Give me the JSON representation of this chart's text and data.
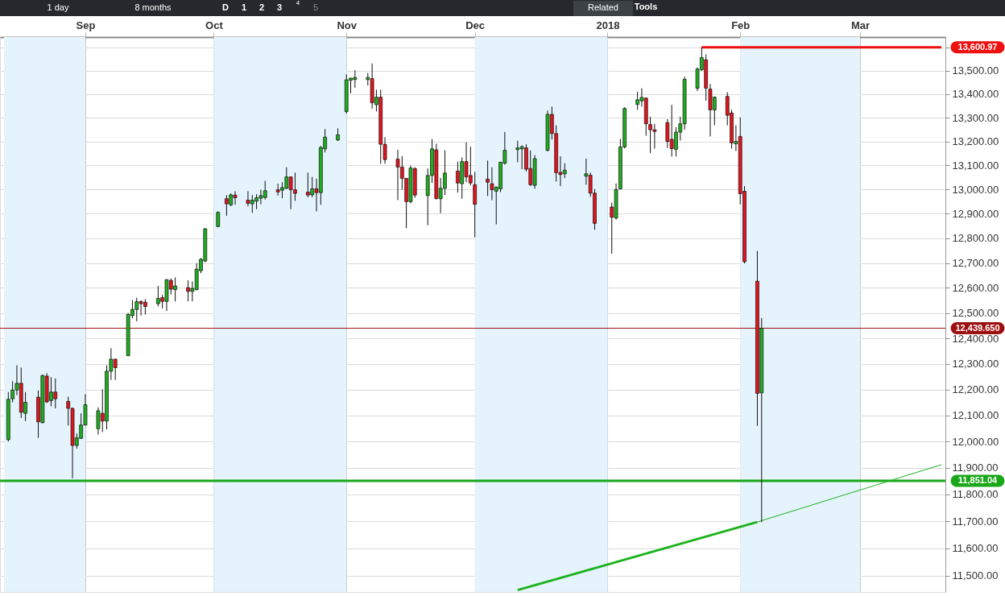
{
  "chart_data": {
    "type": "candlestick",
    "x": [
      "2017-08-14",
      "2017-08-15",
      "2017-08-16",
      "2017-08-17",
      "2017-08-18",
      "2017-08-21",
      "2017-08-22",
      "2017-08-23",
      "2017-08-24",
      "2017-08-25",
      "2017-08-28",
      "2017-08-29",
      "2017-08-30",
      "2017-08-31",
      "2017-09-01",
      "2017-09-04",
      "2017-09-05",
      "2017-09-06",
      "2017-09-07",
      "2017-09-08",
      "2017-09-11",
      "2017-09-12",
      "2017-09-13",
      "2017-09-14",
      "2017-09-15",
      "2017-09-18",
      "2017-09-19",
      "2017-09-20",
      "2017-09-21",
      "2017-09-22",
      "2017-09-25",
      "2017-09-26",
      "2017-09-27",
      "2017-09-28",
      "2017-09-29",
      "2017-10-02",
      "2017-10-04",
      "2017-10-05",
      "2017-10-06",
      "2017-10-09",
      "2017-10-10",
      "2017-10-11",
      "2017-10-12",
      "2017-10-13",
      "2017-10-16",
      "2017-10-17",
      "2017-10-18",
      "2017-10-19",
      "2017-10-20",
      "2017-10-23",
      "2017-10-24",
      "2017-10-25",
      "2017-10-26",
      "2017-10-27",
      "2017-10-30",
      "2017-11-01",
      "2017-11-02",
      "2017-11-03",
      "2017-11-06",
      "2017-11-07",
      "2017-11-08",
      "2017-11-09",
      "2017-11-10",
      "2017-11-13",
      "2017-11-14",
      "2017-11-15",
      "2017-11-16",
      "2017-11-17",
      "2017-11-20",
      "2017-11-21",
      "2017-11-22",
      "2017-11-23",
      "2017-11-24",
      "2017-11-27",
      "2017-11-28",
      "2017-11-29",
      "2017-11-30",
      "2017-12-01",
      "2017-12-04",
      "2017-12-05",
      "2017-12-06",
      "2017-12-07",
      "2017-12-08",
      "2017-12-11",
      "2017-12-12",
      "2017-12-13",
      "2017-12-14",
      "2017-12-15",
      "2017-12-18",
      "2017-12-19",
      "2017-12-20",
      "2017-12-21",
      "2017-12-22",
      "2017-12-27",
      "2017-12-28",
      "2017-12-29",
      "2018-01-02",
      "2018-01-03",
      "2018-01-04",
      "2018-01-05",
      "2018-01-08",
      "2018-01-09",
      "2018-01-10",
      "2018-01-11",
      "2018-01-12",
      "2018-01-15",
      "2018-01-16",
      "2018-01-17",
      "2018-01-18",
      "2018-01-19",
      "2018-01-22",
      "2018-01-23",
      "2018-01-24",
      "2018-01-25",
      "2018-01-26",
      "2018-01-29",
      "2018-01-30",
      "2018-01-31",
      "2018-02-01",
      "2018-02-02",
      "2018-02-05",
      "2018-02-06"
    ],
    "ohlc": [
      [
        12007,
        12190,
        12000,
        12162
      ],
      [
        12164,
        12232,
        12150,
        12198
      ],
      [
        12198,
        12294,
        12178,
        12224
      ],
      [
        12224,
        12285,
        12090,
        12112
      ],
      [
        12108,
        12190,
        12078,
        12150
      ],
      [
        12170,
        12196,
        12014,
        12075
      ],
      [
        12072,
        12258,
        12070,
        12254
      ],
      [
        12252,
        12263,
        12148,
        12152
      ],
      [
        12157,
        12248,
        12135,
        12190
      ],
      [
        12190,
        12243,
        12127,
        12164
      ],
      [
        12154,
        12172,
        12061,
        12127
      ],
      [
        12127,
        12130,
        11861,
        11985
      ],
      [
        11985,
        12031,
        11973,
        12014
      ],
      [
        12012,
        12108,
        12010,
        12063
      ],
      [
        12063,
        12181,
        12061,
        12141
      ],
      [
        12049,
        12131,
        12027,
        12118
      ],
      [
        12108,
        12201,
        12036,
        12078
      ],
      [
        12078,
        12294,
        12046,
        12271
      ],
      [
        12271,
        12361,
        12237,
        12318
      ],
      [
        12318,
        12320,
        12237,
        12285
      ],
      [
        12332,
        12500,
        12329,
        12494
      ],
      [
        12490,
        12551,
        12479,
        12514
      ],
      [
        12514,
        12561,
        12467,
        12545
      ],
      [
        12545,
        12551,
        12490,
        12537
      ],
      [
        12543,
        12555,
        12494,
        12526
      ],
      [
        12537,
        12608,
        12526,
        12558
      ],
      [
        12561,
        12572,
        12518,
        12546
      ],
      [
        12546,
        12635,
        12508,
        12633
      ],
      [
        12630,
        12638,
        12574,
        12595
      ],
      [
        12593,
        12642,
        12546,
        12608
      ],
      [
        12601,
        12630,
        12546,
        12586
      ],
      [
        12586,
        12626,
        12546,
        12598
      ],
      [
        12593,
        12699,
        12590,
        12675
      ],
      [
        12669,
        12720,
        12659,
        12715
      ],
      [
        12708,
        12841,
        12703,
        12839
      ],
      [
        12848,
        12910,
        12845,
        12906
      ],
      [
        12962,
        12977,
        12892,
        12941
      ],
      [
        12937,
        12984,
        12931,
        12978
      ],
      [
        12977,
        12993,
        12937,
        12966
      ],
      [
        12956,
        12993,
        12931,
        12943
      ],
      [
        12941,
        12977,
        12904,
        12956
      ],
      [
        12952,
        12981,
        12919,
        12966
      ],
      [
        12964,
        12999,
        12939,
        12975
      ],
      [
        12967,
        13036,
        12959,
        12995
      ],
      [
        12999,
        13024,
        12975,
        12990
      ],
      [
        12997,
        13030,
        12964,
        13008
      ],
      [
        13005,
        13092,
        13001,
        13052
      ],
      [
        13052,
        13054,
        12919,
        12999
      ],
      [
        12999,
        13070,
        12953,
        12984
      ],
      [
        12989,
        13070,
        12968,
        12977
      ],
      [
        12978,
        13052,
        12968,
        13003
      ],
      [
        13003,
        13045,
        12910,
        12987
      ],
      [
        12987,
        13181,
        12937,
        13175
      ],
      [
        13169,
        13252,
        13154,
        13218
      ],
      [
        13206,
        13255,
        13202,
        13228
      ],
      [
        13326,
        13484,
        13317,
        13461
      ],
      [
        13459,
        13470,
        13403,
        13468
      ],
      [
        13462,
        13502,
        13427,
        13471
      ],
      [
        13462,
        13490,
        13437,
        13471
      ],
      [
        13466,
        13531,
        13338,
        13363
      ],
      [
        13355,
        13419,
        13326,
        13387
      ],
      [
        13387,
        13419,
        13107,
        13188
      ],
      [
        13188,
        13218,
        13107,
        13124
      ],
      [
        13126,
        13165,
        12956,
        13093
      ],
      [
        13093,
        13139,
        12999,
        13046
      ],
      [
        13046,
        13048,
        12841,
        12950
      ],
      [
        12950,
        13099,
        12943,
        13089
      ],
      [
        13087,
        13092,
        12966,
        12977
      ],
      [
        12975,
        13087,
        12853,
        13058
      ],
      [
        13058,
        13210,
        13027,
        13169
      ],
      [
        13165,
        13190,
        12960,
        12962
      ],
      [
        12962,
        13048,
        12903,
        13005
      ],
      [
        13005,
        13163,
        12977,
        13068
      ],
      [
        13076,
        13116,
        12987,
        13027
      ],
      [
        13024,
        13133,
        12962,
        13116
      ],
      [
        13116,
        13196,
        13030,
        13052
      ],
      [
        13058,
        13178,
        13017,
        13027
      ],
      [
        13020,
        13073,
        12804,
        12939
      ],
      [
        13043,
        13120,
        12973,
        13030
      ],
      [
        13024,
        13092,
        12956,
        12999
      ],
      [
        12993,
        13012,
        12857,
        13010
      ],
      [
        13003,
        13115,
        12989,
        13113
      ],
      [
        13109,
        13240,
        13103,
        13163
      ],
      [
        13166,
        13203,
        13113,
        13173
      ],
      [
        13169,
        13184,
        13084,
        13178
      ],
      [
        13173,
        13188,
        13074,
        13084
      ],
      [
        13087,
        13162,
        13014,
        13020
      ],
      [
        13017,
        13143,
        13003,
        13128
      ],
      [
        13163,
        13330,
        13158,
        13314
      ],
      [
        13314,
        13347,
        13208,
        13233
      ],
      [
        13233,
        13268,
        13033,
        13070
      ],
      [
        13071,
        13138,
        13014,
        13062
      ],
      [
        13065,
        13109,
        13047,
        13080
      ],
      [
        13055,
        13128,
        13020,
        13065
      ],
      [
        13059,
        13070,
        12970,
        12985
      ],
      [
        12985,
        13002,
        12835,
        12861
      ],
      [
        12928,
        12946,
        12737,
        12886
      ],
      [
        12883,
        13025,
        12876,
        13000
      ],
      [
        13003,
        13211,
        13000,
        13177
      ],
      [
        13177,
        13344,
        13171,
        13339
      ],
      [
        13356,
        13410,
        13333,
        13376
      ],
      [
        13371,
        13425,
        13347,
        13386
      ],
      [
        13383,
        13385,
        13224,
        13274
      ],
      [
        13271,
        13304,
        13152,
        13249
      ],
      [
        13249,
        13274,
        13170,
        13242
      ],
      [
        13279,
        13294,
        13173,
        13200
      ],
      [
        13209,
        13354,
        13137,
        13170
      ],
      [
        13167,
        13260,
        13137,
        13239
      ],
      [
        13239,
        13304,
        13204,
        13274
      ],
      [
        13274,
        13474,
        13249,
        13463
      ],
      [
        13425,
        13514,
        13413,
        13507
      ],
      [
        13504,
        13600.97,
        13499,
        13556
      ],
      [
        13547,
        13570,
        13372,
        13425
      ],
      [
        13421,
        13443,
        13221,
        13333
      ],
      [
        13333,
        13390,
        13268,
        13387
      ],
      [
        13390,
        13408,
        13268,
        13310
      ],
      [
        13320,
        13333,
        13170,
        13194
      ],
      [
        13190,
        13268,
        13160,
        13200
      ],
      [
        13221,
        13301,
        12939,
        12983
      ],
      [
        12993,
        13014,
        12698,
        12705
      ],
      [
        12627,
        12749,
        12060,
        12185
      ],
      [
        12187,
        12480,
        11696,
        12439.65
      ]
    ],
    "colors": [
      "#1fae1f",
      "#1fae1f",
      "#1fae1f",
      "#e3141e",
      "#1fae1f",
      "#e3141e",
      "#1fae1f",
      "#e3141e",
      "#1fae1f",
      "#e3141e",
      "#e3141e",
      "#e3141e",
      "#1fae1f",
      "#1fae1f",
      "#1fae1f",
      "#1fae1f",
      "#e3141e",
      "#1fae1f",
      "#1fae1f",
      "#e3141e",
      "#1fae1f",
      "#1fae1f",
      "#1fae1f",
      "#e3141e",
      "#e3141e",
      "#1fae1f",
      "#e3141e",
      "#1fae1f",
      "#e3141e",
      "#1fae1f",
      "#e3141e",
      "#1fae1f",
      "#1fae1f",
      "#1fae1f",
      "#1fae1f",
      "#1fae1f",
      "#e3141e",
      "#1fae1f",
      "#e3141e",
      "#e3141e",
      "#1fae1f",
      "#1fae1f",
      "#1fae1f",
      "#1fae1f",
      "#e3141e",
      "#1fae1f",
      "#1fae1f",
      "#e3141e",
      "#e3141e",
      "#e3141e",
      "#1fae1f",
      "#e3141e",
      "#1fae1f",
      "#1fae1f",
      "#1fae1f",
      "#1fae1f",
      "#1fae1f",
      "#1fae1f",
      "#1fae1f",
      "#e3141e",
      "#1fae1f",
      "#e3141e",
      "#e3141e",
      "#e3141e",
      "#e3141e",
      "#e3141e",
      "#1fae1f",
      "#e3141e",
      "#1fae1f",
      "#1fae1f",
      "#e3141e",
      "#1fae1f",
      "#1fae1f",
      "#e3141e",
      "#1fae1f",
      "#e3141e",
      "#e3141e",
      "#e3141e",
      "#e3141e",
      "#e3141e",
      "#1fae1f",
      "#1fae1f",
      "#1fae1f",
      "#1fae1f",
      "#1fae1f",
      "#e3141e",
      "#e3141e",
      "#1fae1f",
      "#1fae1f",
      "#e3141e",
      "#e3141e",
      "#e3141e",
      "#1fae1f",
      "#1fae1f",
      "#e3141e",
      "#e3141e",
      "#e3141e",
      "#1fae1f",
      "#1fae1f",
      "#1fae1f",
      "#1fae1f",
      "#1fae1f",
      "#e3141e",
      "#e3141e",
      "#e3141e",
      "#e3141e",
      "#e3141e",
      "#1fae1f",
      "#1fae1f",
      "#1fae1f",
      "#1fae1f",
      "#1fae1f",
      "#e3141e",
      "#e3141e",
      "#1fae1f",
      "#e3141e",
      "#e3141e",
      "#1fae1f",
      "#e3141e",
      "#e3141e",
      "#e3141e",
      "#1fae1f"
    ],
    "series": [
      {
        "type": "line",
        "x": [
          "2018-01-23",
          "2018-03-20"
        ],
        "values": [
          13600.97,
          13600.97
        ],
        "color": "#ee1111",
        "value_labels": [
          null,
          "13,600.97"
        ]
      },
      {
        "type": "line",
        "x": [
          "2017-12-11",
          "2018-02-05"
        ],
        "values": [
          11447,
          11697
        ],
        "color": "#1db31d"
      },
      {
        "type": "line",
        "x": [
          "2018-02-05",
          "2018-03-20"
        ],
        "values": [
          11697,
          11912
        ],
        "color": "#1db31d"
      }
    ],
    "ref_lines": [
      {
        "axis": "y",
        "value": 11851.04,
        "label": "11,851.04",
        "color": "#1aa81a"
      },
      {
        "axis": "y",
        "value": 12439.65,
        "label": "12,439.650",
        "color": "#9e1010"
      }
    ],
    "bands": [
      {
        "axis": "x",
        "from": "2017-08-13",
        "to": "2017-09",
        "color": "#e5f3fd"
      },
      {
        "axis": "x",
        "from": "2017-10",
        "to": "2017-11",
        "color": "#e5f3fd"
      },
      {
        "axis": "x",
        "from": "2017-12",
        "to": "2018-01",
        "color": "#e5f3fd"
      },
      {
        "axis": "x",
        "from": "2018-02",
        "to": "2018-03",
        "color": "#e5f3fd"
      }
    ],
    "xlim": [
      "2017-08-13",
      "2018-03-20"
    ],
    "xticks": [
      {
        "value": "2017-09",
        "label": "Sep"
      },
      {
        "value": "2017-10",
        "label": "Oct"
      },
      {
        "value": "2017-11",
        "label": "Nov"
      },
      {
        "value": "2017-12",
        "label": "Dec"
      },
      {
        "value": "2018-01",
        "label": "2018"
      },
      {
        "value": "2018-02",
        "label": "Feb"
      },
      {
        "value": "2018-03",
        "label": "Mar"
      }
    ],
    "ylim": [
      11440,
      13645
    ],
    "yticks": [
      {
        "value": 11500,
        "label": "11,500.00"
      },
      {
        "value": 11600,
        "label": "11,600.00"
      },
      {
        "value": 11700,
        "label": "11,700.00"
      },
      {
        "value": 11800,
        "label": "11,800.00"
      },
      {
        "value": 11900,
        "label": "11,900.00"
      },
      {
        "value": 12000,
        "label": "12,000.00"
      },
      {
        "value": 12100,
        "label": "12,100.00"
      },
      {
        "value": 12200,
        "label": "12,200.00"
      },
      {
        "value": 12300,
        "label": "12,300.00"
      },
      {
        "value": 12400,
        "label": "12,400.00"
      },
      {
        "value": 12500,
        "label": "12,500.00"
      },
      {
        "value": 12600,
        "label": "12,600.00"
      },
      {
        "value": 12700,
        "label": "12,700.00"
      },
      {
        "value": 12800,
        "label": "12,800.00"
      },
      {
        "value": 12900,
        "label": "12,900.00"
      },
      {
        "value": 13000,
        "label": "13,000.00"
      },
      {
        "value": 13100,
        "label": "13,100.00"
      },
      {
        "value": 13200,
        "label": "13,200.00"
      },
      {
        "value": 13300,
        "label": "13,300.00"
      },
      {
        "value": 13400,
        "label": "13,400.00"
      },
      {
        "value": 13500,
        "label": "13,500.00"
      },
      {
        "value": 13600,
        "label": null
      }
    ],
    "log": true,
    "grid": true,
    "annotations": [
      "1 day",
      "8 months",
      "D",
      "1",
      "2",
      "3",
      "4",
      "5",
      "Related",
      "Tools"
    ]
  }
}
